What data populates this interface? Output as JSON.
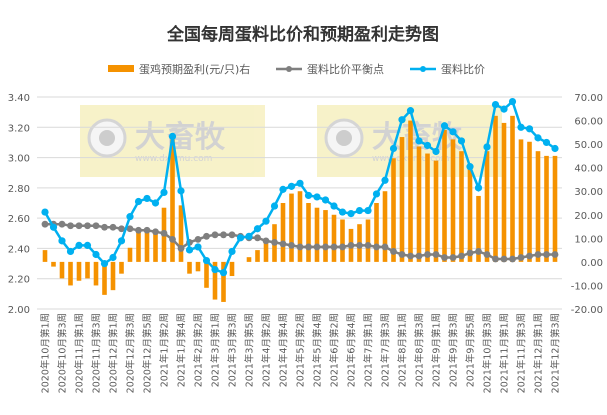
{
  "chart_data": {
    "type": "bar+line",
    "title": "全国每周蛋料比价和预期盈利走势图",
    "x_labels": [
      "2020年10月第1周",
      "2020年10月第3周",
      "2020年11月第1周",
      "2020年11月第3周",
      "2020年12月第1周",
      "2020年12月第3周",
      "2020年12月第5周",
      "2021年1月第2周",
      "2021年1月第4周",
      "2021年2月第2周",
      "2021年3月第1周",
      "2021年3月第3周",
      "2021年3月第5周",
      "2021年4月第2周",
      "2021年4月第4周",
      "2021年5月第2周",
      "2021年5月第4周",
      "2021年6月第2周",
      "2021年6月第4周",
      "2021年7月第1周",
      "2021年7月第3周",
      "2021年8月第1周",
      "2021年8月第3周",
      "2021年9月第1周",
      "2021年9月第3周",
      "2021年9月第5周",
      "2021年10月第3周",
      "2021年11月第1周",
      "2021年11月第3周",
      "2021年12月第1周",
      "2021年12月第3周"
    ],
    "x_label_every": 2,
    "left_axis": {
      "min": 2.0,
      "max": 3.4,
      "step": 0.2,
      "tick_format": "0.00"
    },
    "right_axis": {
      "min": -20,
      "max": 70,
      "step": 10,
      "tick_format": "0.00"
    },
    "grid": true,
    "legend_placement": "top",
    "series": [
      {
        "name": "蛋鸡预期盈利(元/只)右",
        "type": "bar",
        "axis": "right",
        "color": "#f59200",
        "values": [
          5,
          -2,
          -7,
          -10,
          -8,
          -7,
          -10,
          -14,
          -12,
          -5,
          6,
          13,
          14,
          13,
          23,
          52,
          24,
          -5,
          -4,
          -11,
          -16,
          -17,
          -6,
          0,
          2,
          5,
          9,
          16,
          25,
          29,
          30,
          25,
          23,
          22,
          20,
          18,
          14,
          16,
          18,
          25,
          30,
          44,
          53,
          60,
          49,
          46,
          43,
          56,
          52,
          47,
          40,
          28,
          47,
          62,
          59,
          62,
          52,
          51,
          47,
          45,
          45
        ]
      },
      {
        "name": "蛋料比价平衡点",
        "type": "line",
        "axis": "left",
        "color": "#7f7f7f",
        "values": [
          2.56,
          2.56,
          2.56,
          2.55,
          2.55,
          2.55,
          2.55,
          2.54,
          2.54,
          2.53,
          2.53,
          2.52,
          2.52,
          2.51,
          2.5,
          2.46,
          2.4,
          2.44,
          2.46,
          2.48,
          2.49,
          2.49,
          2.49,
          2.48,
          2.47,
          2.47,
          2.45,
          2.44,
          2.43,
          2.42,
          2.41,
          2.41,
          2.41,
          2.41,
          2.41,
          2.41,
          2.42,
          2.42,
          2.42,
          2.41,
          2.41,
          2.38,
          2.36,
          2.35,
          2.35,
          2.36,
          2.36,
          2.34,
          2.34,
          2.35,
          2.37,
          2.38,
          2.36,
          2.33,
          2.33,
          2.33,
          2.34,
          2.35,
          2.36,
          2.36,
          2.36
        ]
      },
      {
        "name": "蛋料比价",
        "type": "line",
        "axis": "left",
        "color": "#00b0f0",
        "values": [
          2.64,
          2.54,
          2.45,
          2.38,
          2.42,
          2.42,
          2.36,
          2.3,
          2.34,
          2.45,
          2.61,
          2.71,
          2.73,
          2.7,
          2.77,
          3.14,
          2.78,
          2.39,
          2.41,
          2.32,
          2.26,
          2.24,
          2.38,
          2.47,
          2.48,
          2.53,
          2.58,
          2.68,
          2.79,
          2.81,
          2.83,
          2.75,
          2.74,
          2.72,
          2.68,
          2.64,
          2.63,
          2.65,
          2.65,
          2.76,
          2.85,
          3.06,
          3.25,
          3.31,
          3.11,
          3.08,
          3.04,
          3.21,
          3.17,
          3.11,
          2.94,
          2.8,
          3.07,
          3.35,
          3.32,
          3.37,
          3.2,
          3.19,
          3.13,
          3.1,
          3.06
        ]
      }
    ],
    "watermark": {
      "brand": "大畜牧",
      "url": "www.dxumu.com"
    }
  }
}
